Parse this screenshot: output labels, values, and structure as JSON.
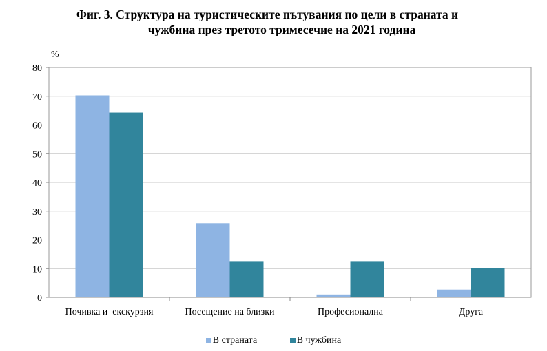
{
  "chart_data": {
    "type": "bar",
    "title_line1": "Фиг. 3. Структура на туристическите пътувания по цели в страната и",
    "title_line2": "чужбина през третото тримесечие на 2021 година",
    "ylabel": "%",
    "ylim": [
      0,
      80
    ],
    "yticks": [
      0,
      10,
      20,
      30,
      40,
      50,
      60,
      70,
      80
    ],
    "grid": true,
    "legend_position": "bottom",
    "categories": [
      "Почивка и  екскурзия",
      "Посещение на близки",
      "Професионална",
      "Друга"
    ],
    "series": [
      {
        "name": "В страната",
        "color": "#8eb4e3",
        "values": [
          70.3,
          25.8,
          1.0,
          2.7
        ]
      },
      {
        "name": "В чужбина",
        "color": "#31859c",
        "values": [
          64.3,
          12.6,
          12.6,
          10.2
        ]
      }
    ]
  }
}
